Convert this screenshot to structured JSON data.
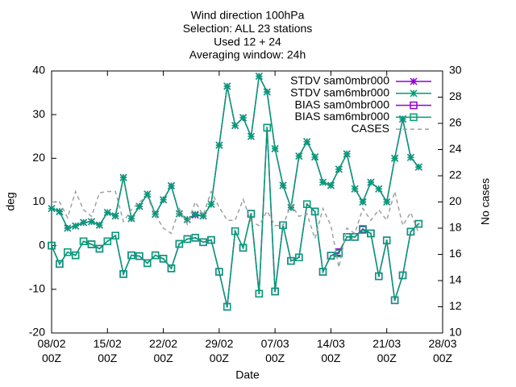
{
  "chart_data": {
    "type": "line",
    "title": [
      "Wind direction 100hPa",
      "Selection: ALL     23 stations",
      "Used 12 + 24",
      "Averaging window: 24h"
    ],
    "xlabel": "Date",
    "ylabel": "deg",
    "y2label": "No cases",
    "x": [
      0,
      1,
      2,
      3,
      4,
      5,
      6,
      7,
      8,
      9,
      10,
      11,
      12,
      13,
      14,
      15,
      16,
      17,
      18,
      19,
      20,
      21,
      22,
      23,
      24,
      25,
      26,
      27,
      28,
      29,
      30,
      31,
      32,
      33,
      34,
      35,
      36,
      37,
      38,
      39,
      40,
      41,
      42,
      43,
      44,
      45,
      46
    ],
    "xlim": [
      0,
      49
    ],
    "xticks": [
      {
        "value": 0,
        "label": "08/02\n00Z"
      },
      {
        "value": 7,
        "label": "15/02\n00Z"
      },
      {
        "value": 14,
        "label": "22/02\n00Z"
      },
      {
        "value": 21,
        "label": "29/02\n00Z"
      },
      {
        "value": 28,
        "label": "07/03\n00Z"
      },
      {
        "value": 35,
        "label": "14/03\n00Z"
      },
      {
        "value": 42,
        "label": "21/03\n00Z"
      },
      {
        "value": 49,
        "label": "28/03\n00Z"
      }
    ],
    "ylim": [
      -20,
      40
    ],
    "yticks": [
      -20,
      -10,
      0,
      10,
      20,
      30,
      40
    ],
    "y2lim": [
      10,
      30
    ],
    "y2ticks": [
      10,
      12,
      14,
      16,
      18,
      20,
      22,
      24,
      26,
      28,
      30
    ],
    "legend": "top-right",
    "series": [
      {
        "name": "STDV sam0mbr000",
        "color": "#9400d3",
        "marker": "star",
        "values": [
          8.5,
          7.8,
          4,
          4.5,
          5.3,
          5.5,
          4.7,
          7.6,
          6.8,
          15.6,
          6.2,
          9,
          11.8,
          7.2,
          10.5,
          13.7,
          7.3,
          6,
          7,
          6.8,
          9.5,
          23,
          36.5,
          27.5,
          29.3,
          25,
          38.8,
          35.2,
          22.2,
          13.8,
          8.7,
          20.5,
          23.8,
          20.3,
          14.5,
          13.8,
          17.5,
          21,
          13,
          10,
          14.5,
          13,
          10,
          20,
          29,
          20.2,
          18
        ]
      },
      {
        "name": "STDV sam6mbr000",
        "color": "#009e73",
        "marker": "star",
        "values": [
          8.5,
          7.8,
          4,
          4.5,
          5.3,
          5.5,
          4.7,
          7.6,
          6.8,
          15.6,
          6.2,
          9,
          11.8,
          7.2,
          10.5,
          13.7,
          7.3,
          6,
          7.2,
          6.8,
          9.5,
          23,
          36.5,
          27.5,
          29.3,
          25,
          38.8,
          35.2,
          22.2,
          13.8,
          8.7,
          20.5,
          23.8,
          20.3,
          14.5,
          13.8,
          17.5,
          21,
          13,
          10,
          14.5,
          13,
          10,
          20,
          29,
          20.2,
          18
        ]
      },
      {
        "name": "BIAS sam0mbr000",
        "color": "#9400d3",
        "marker": "square",
        "values": [
          0,
          -4.2,
          -1.5,
          -2.2,
          1,
          0.3,
          -0.7,
          1,
          2.3,
          -6.5,
          -2.2,
          -2.4,
          -4,
          -2.2,
          -3,
          -5.2,
          0.4,
          1.5,
          1.8,
          0.8,
          1.3,
          -6,
          -14,
          3.3,
          -0.5,
          7.3,
          -11,
          27,
          -10.5,
          4.7,
          -3.5,
          -2.7,
          9.5,
          7.8,
          -6,
          -2.3,
          -1.5,
          2,
          2,
          3.8,
          2.8,
          -7,
          1.2,
          -12.5,
          -6.8,
          3.2,
          5
        ]
      },
      {
        "name": "BIAS sam6mbr000",
        "color": "#009e73",
        "marker": "square",
        "values": [
          0,
          -4.2,
          -1.5,
          -2.2,
          1,
          0.3,
          -0.7,
          1,
          2.3,
          -6.5,
          -2.2,
          -2.4,
          -4,
          -2.2,
          -3,
          -5.2,
          0.4,
          1.5,
          1.8,
          0.8,
          1.3,
          -6,
          -14,
          3.3,
          -0.5,
          7.3,
          -11,
          27,
          -10.5,
          4.7,
          -3.5,
          -2.7,
          9.5,
          7.8,
          -6,
          -2.3,
          -1.8,
          2,
          2,
          3.6,
          2.8,
          -7,
          1.2,
          -12.5,
          -6.8,
          3.2,
          5
        ]
      },
      {
        "name": "CASES",
        "color": "#a0a0a0",
        "marker": "none",
        "dashed": true,
        "axis": "y2",
        "values": [
          20,
          20,
          18.8,
          20.8,
          19.4,
          18.9,
          20.7,
          20.8,
          20.8,
          18.5,
          19.4,
          20,
          20.4,
          19,
          18,
          17.6,
          19.5,
          18.3,
          20,
          19,
          20.8,
          19.6,
          18.6,
          18.6,
          20.2,
          18.5,
          18.2,
          19.3,
          18.2,
          18.2,
          19.8,
          18.9,
          19.1,
          17.2,
          19.5,
          18.2,
          15,
          18,
          17.6,
          19.5,
          18.6,
          19.4,
          18.6,
          20.8,
          18.2,
          19.2,
          17.6
        ]
      }
    ]
  }
}
